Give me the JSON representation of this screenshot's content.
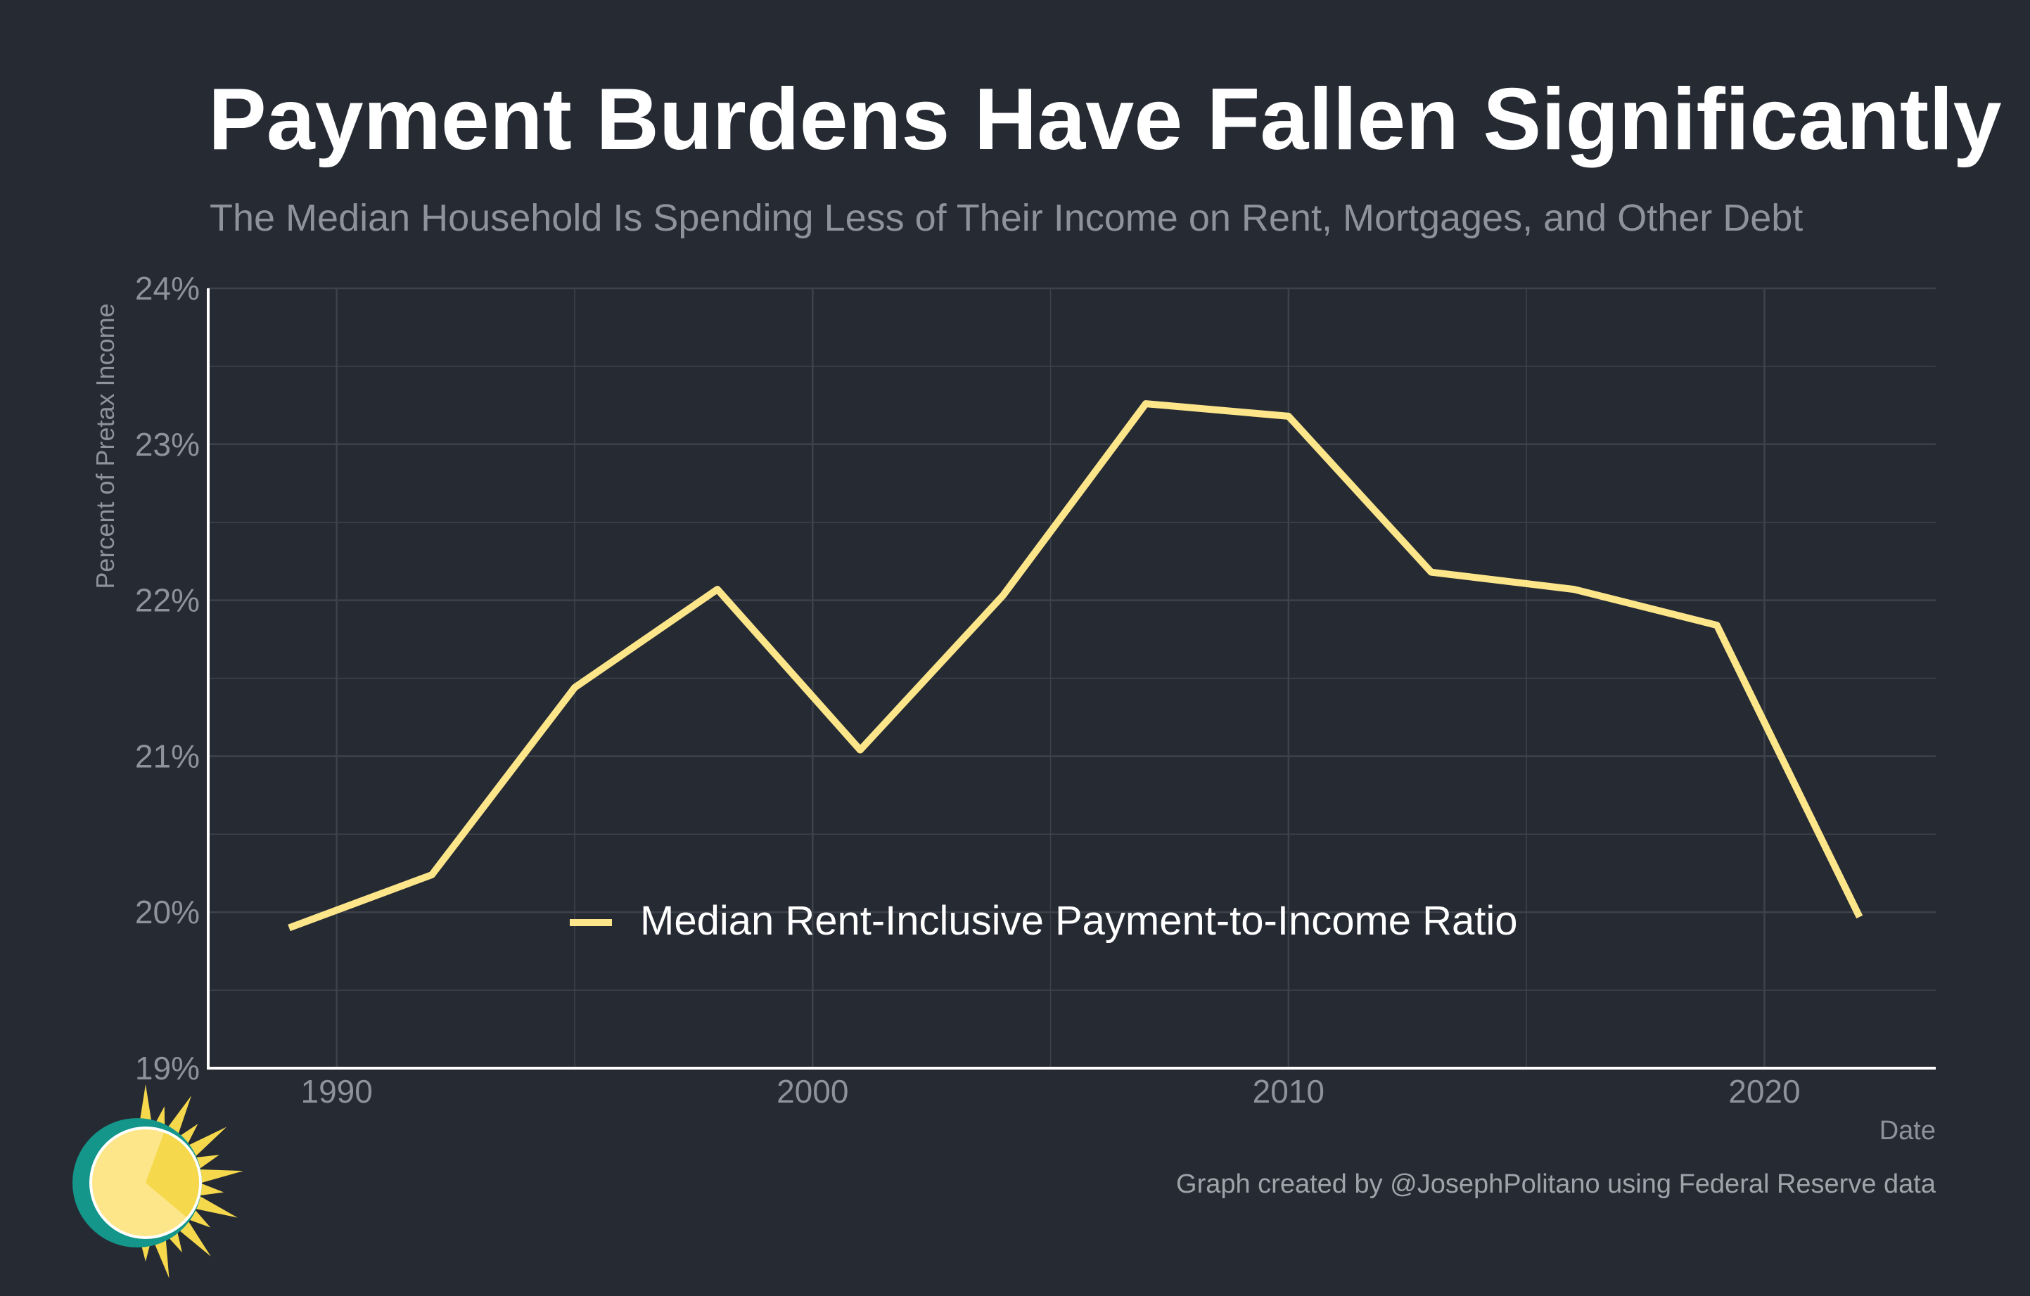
{
  "colors": {
    "background": "#252a33",
    "grid": "#3d424b",
    "axis": "#ffffff",
    "series": "#fde68a",
    "title": "#ffffff",
    "muted": "#8e939b",
    "logo_ring": "#14968a",
    "logo_sun": "#fde68a",
    "logo_rays": "#f6d84c"
  },
  "header": {
    "title": "Payment Burdens Have Fallen Significantly",
    "subtitle": "The Median Household Is Spending Less of Their Income on Rent, Mortgages, and Other Debt"
  },
  "footer": {
    "caption": "Graph created by @JosephPolitano using Federal Reserve data"
  },
  "logo": {
    "icon": "sun-icon"
  },
  "chart_data": {
    "type": "line",
    "xlabel": "Date",
    "ylabel": "Percent of Pretax Income",
    "xlim": [
      1987.3,
      2023.6
    ],
    "ylim": [
      19,
      24
    ],
    "x_ticks": [
      1990,
      2000,
      2010,
      2020
    ],
    "y_ticks": [
      "19%",
      "20%",
      "21%",
      "22%",
      "23%",
      "24%"
    ],
    "grid": true,
    "legend_position": "center-bottom",
    "series": [
      {
        "name": "Median Rent-Inclusive Payment-to-Income Ratio",
        "x": [
          1989,
          1992,
          1995,
          1998,
          2001,
          2004,
          2007,
          2010,
          2013,
          2016,
          2019,
          2022
        ],
        "values": [
          19.9,
          20.24,
          21.44,
          22.07,
          21.04,
          22.03,
          23.26,
          23.18,
          22.18,
          22.07,
          21.84,
          19.97
        ]
      }
    ]
  }
}
